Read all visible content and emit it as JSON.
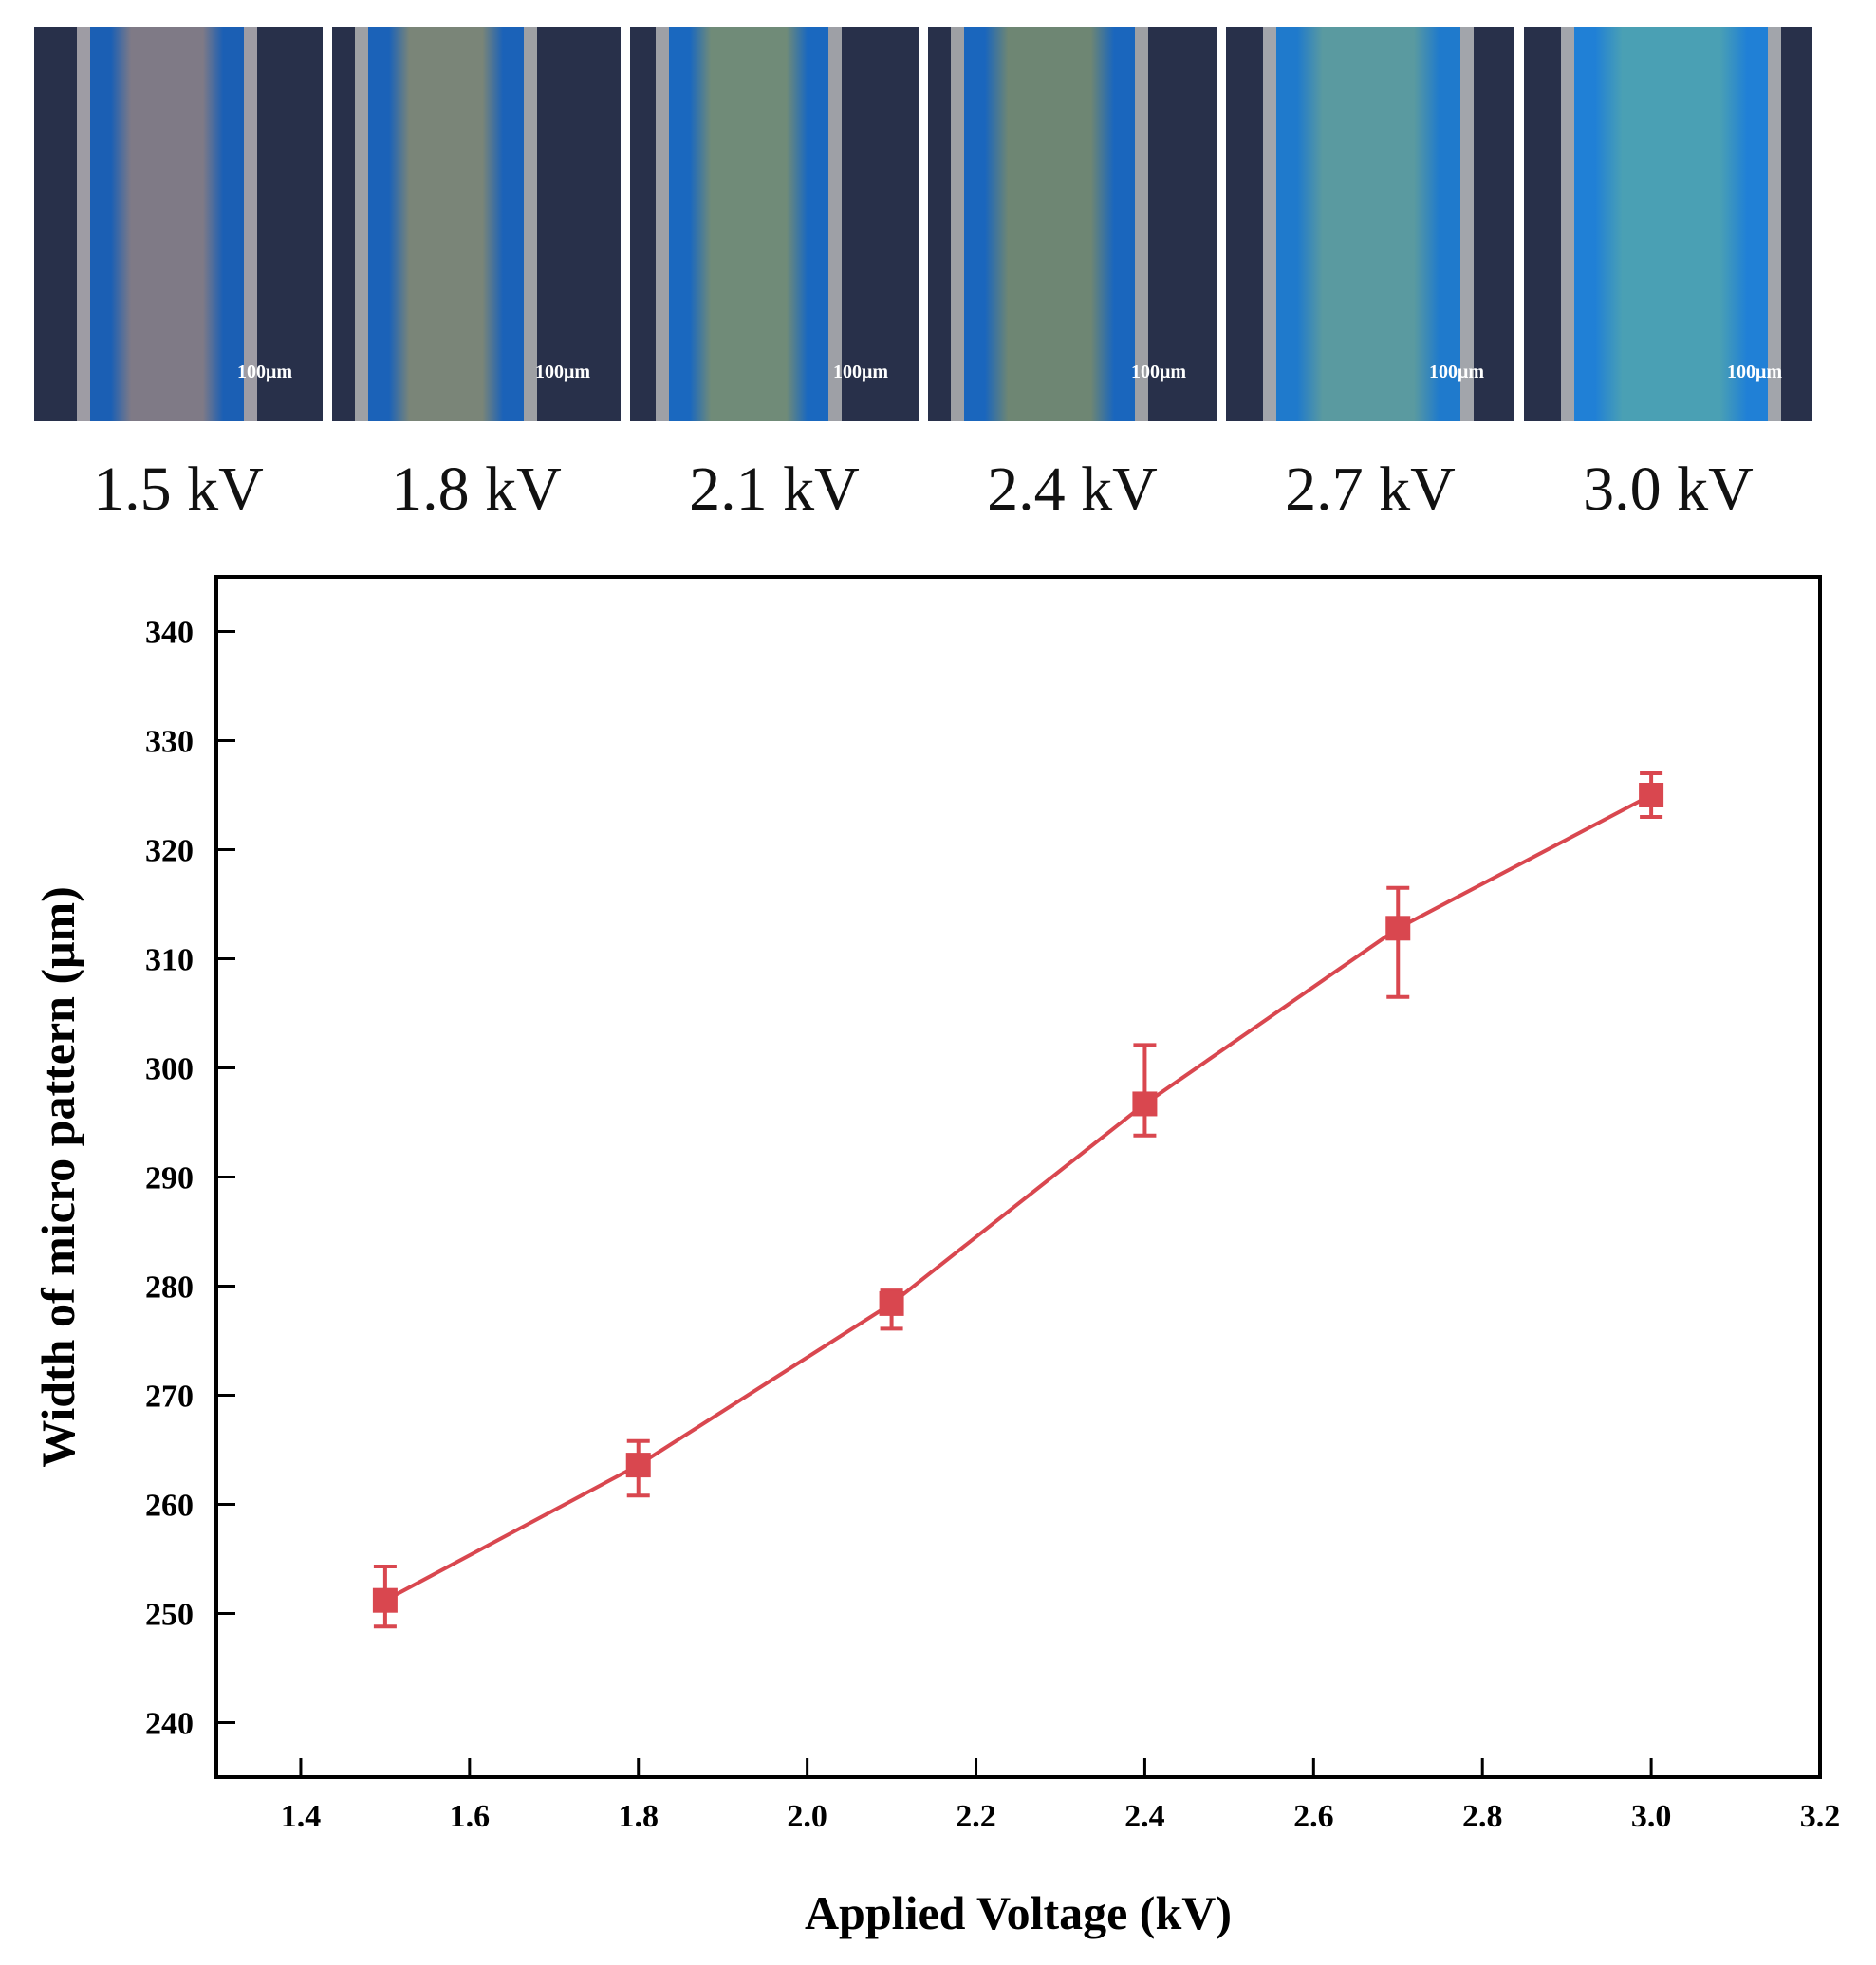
{
  "micrographs": [
    {
      "voltage_label": "1.5 kV",
      "scale_text": "100μm",
      "colors": {
        "core": "#7f7a86",
        "inner": "#1b5fb4",
        "edge": "#9e9ca4",
        "bg": "#28304a"
      }
    },
    {
      "voltage_label": "1.8 kV",
      "scale_text": "100μm",
      "colors": {
        "core": "#7a8578",
        "inner": "#1b62b8",
        "edge": "#9ea0a4",
        "bg": "#28304a"
      }
    },
    {
      "voltage_label": "2.1 kV",
      "scale_text": "100μm",
      "colors": {
        "core": "#708b78",
        "inner": "#1a68bf",
        "edge": "#9ea0a6",
        "bg": "#28304a"
      }
    },
    {
      "voltage_label": "2.4 kV",
      "scale_text": "100μm",
      "colors": {
        "core": "#6e8673",
        "inner": "#1a66bd",
        "edge": "#9ea0a4",
        "bg": "#28304a"
      }
    },
    {
      "voltage_label": "2.7 kV",
      "scale_text": "100μm",
      "colors": {
        "core": "#5a9aa0",
        "inner": "#1f7acc",
        "edge": "#a2a5ab",
        "bg": "#28304a"
      }
    },
    {
      "voltage_label": "3.0 kV",
      "scale_text": "100μm",
      "colors": {
        "core": "#4aa0b4",
        "inner": "#2080d6",
        "edge": "#a2a5ab",
        "bg": "#28304a"
      }
    }
  ],
  "chart_data": {
    "type": "line",
    "title": "",
    "xlabel": "Applied Voltage (kV)",
    "ylabel": "Width of micro pattern (μm)",
    "xlim": [
      1.3,
      3.2
    ],
    "ylim": [
      235,
      345
    ],
    "xticks": [
      "1.4",
      "1.6",
      "1.8",
      "2.0",
      "2.2",
      "2.4",
      "2.6",
      "2.8",
      "3.0",
      "3.2"
    ],
    "yticks": [
      "240",
      "250",
      "260",
      "270",
      "280",
      "290",
      "300",
      "310",
      "320",
      "330",
      "340"
    ],
    "grid": false,
    "series": [
      {
        "name": "Width",
        "color": "#d9474f",
        "x": [
          1.5,
          1.8,
          2.1,
          2.4,
          2.7,
          3.0
        ],
        "y": [
          251.2,
          263.6,
          278.4,
          296.7,
          312.8,
          325.0
        ],
        "err_low": [
          248.8,
          260.8,
          276.1,
          293.8,
          306.5,
          323.0
        ],
        "err_high": [
          254.3,
          265.8,
          279.6,
          302.1,
          316.5,
          327.0
        ]
      }
    ]
  }
}
